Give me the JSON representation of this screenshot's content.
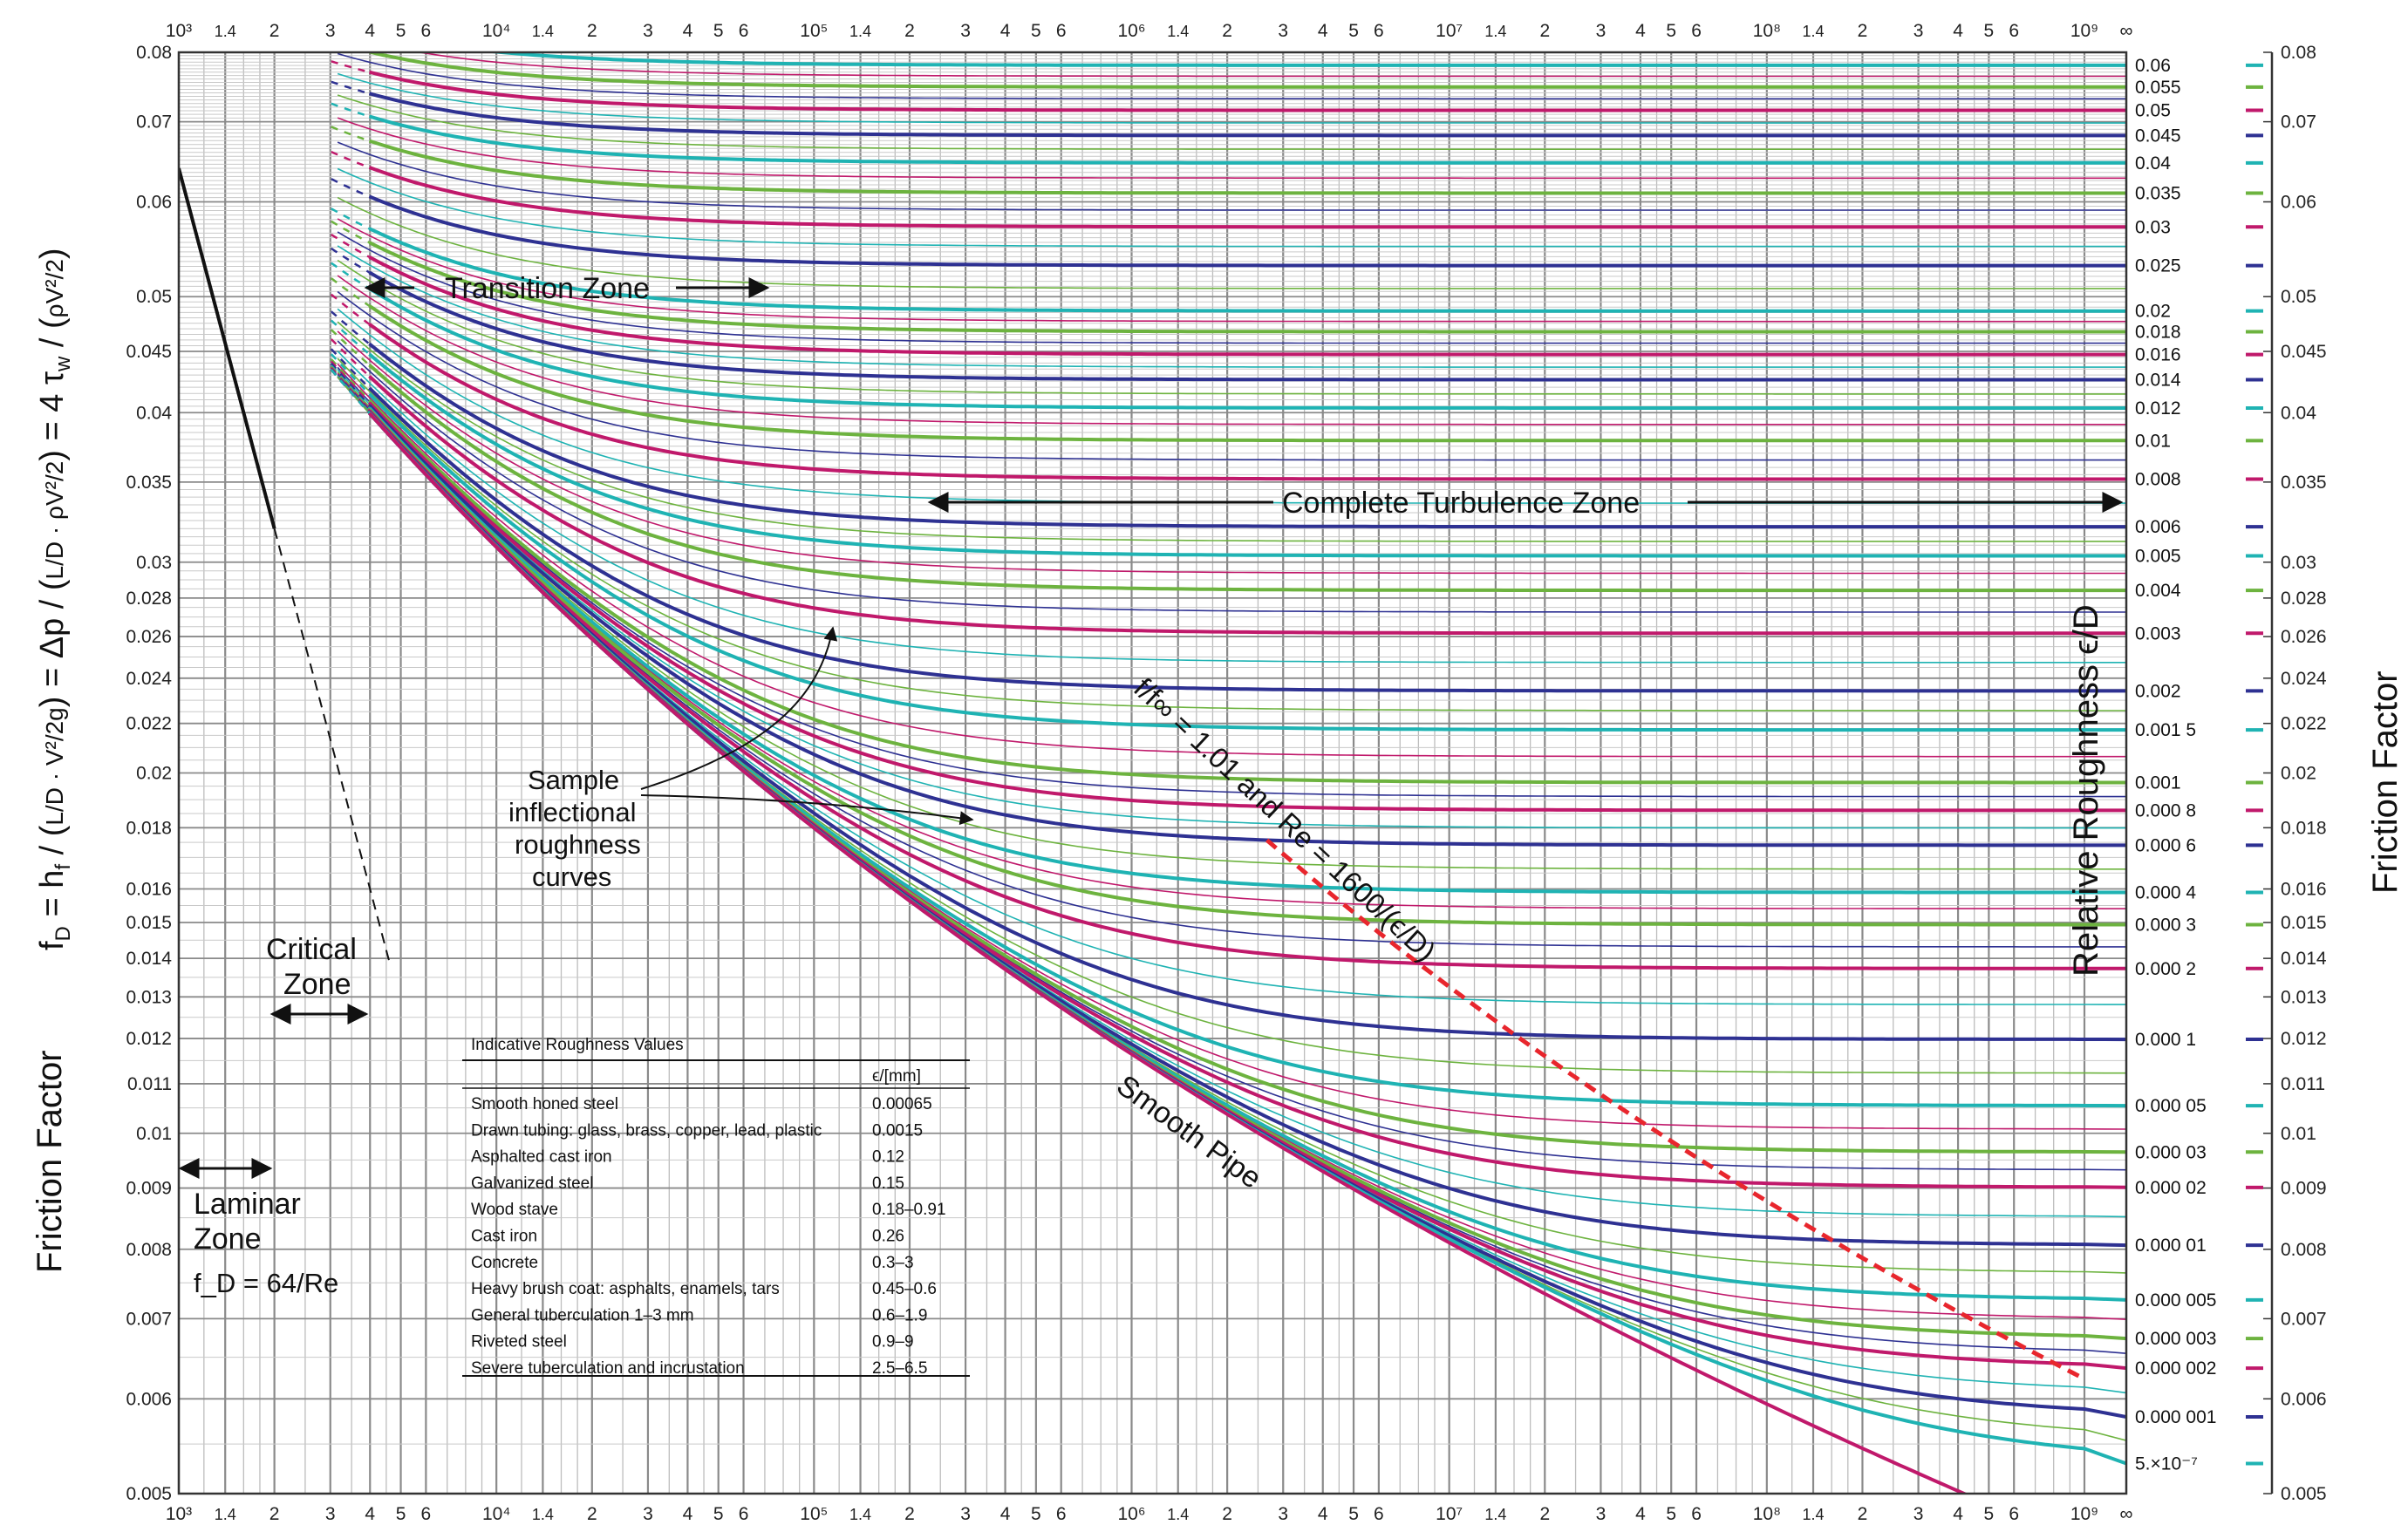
{
  "chart_data": {
    "type": "line",
    "x_scale": "log",
    "y_scale": "log",
    "xlim": [
      1000,
      1000000000
    ],
    "ylim": [
      0.005,
      0.08
    ],
    "x_tick_labels": [
      "10³",
      "1.4",
      "2",
      "3",
      "4",
      "5",
      "6",
      "10⁴",
      "1.4",
      "2",
      "3",
      "4",
      "5",
      "6",
      "10⁵",
      "1.4",
      "2",
      "3",
      "4",
      "5",
      "6",
      "10⁶",
      "1.4",
      "2",
      "3",
      "4",
      "5",
      "6",
      "10⁷",
      "1.4",
      "2",
      "3",
      "4",
      "5",
      "6",
      "10⁸",
      "1.4",
      "2",
      "3",
      "4",
      "5",
      "6",
      "10⁹",
      "∞"
    ],
    "y_ticks": [
      "0.005",
      "0.006",
      "0.007",
      "0.008",
      "0.009",
      "0.01",
      "0.011",
      "0.012",
      "0.013",
      "0.014",
      "0.015",
      "0.016",
      "0.018",
      "0.02",
      "0.022",
      "0.024",
      "0.026",
      "0.028",
      "0.03",
      "0.035",
      "0.04",
      "0.045",
      "0.05",
      "0.06",
      "0.07",
      "0.08"
    ],
    "roughness_labels": [
      "0.06",
      "0.055",
      "0.05",
      "0.045",
      "0.04",
      "0.035",
      "0.03",
      "0.025",
      "0.02",
      "0.018",
      "0.016",
      "0.014",
      "0.012",
      "0.01",
      "0.008",
      "0.006",
      "0.005",
      "0.004",
      "0.003",
      "0.002",
      "0.001 5",
      "0.001",
      "0.000 8",
      "0.000 6",
      "0.000 4",
      "0.000 3",
      "0.000 2",
      "0.000 1",
      "0.000 05",
      "0.000 03",
      "0.000 02",
      "0.000 01",
      "0.000 005",
      "0.000 003",
      "0.000 002",
      "0.000 001",
      "5.×10⁻⁷"
    ],
    "roughness_values": [
      0.06,
      0.055,
      0.05,
      0.045,
      0.04,
      0.035,
      0.03,
      0.025,
      0.02,
      0.018,
      0.016,
      0.014,
      0.012,
      0.01,
      0.008,
      0.006,
      0.005,
      0.004,
      0.003,
      0.002,
      0.0015,
      0.001,
      0.0008,
      0.0006,
      0.0004,
      0.0003,
      0.0002,
      0.0001,
      5e-05,
      3e-05,
      2e-05,
      1e-05,
      5e-06,
      3e-06,
      2e-06,
      1e-06,
      5e-07
    ],
    "series_palette": [
      "#1fb3b3",
      "#6db33f",
      "#c0196b",
      "#2e3192"
    ],
    "laminar": {
      "formula": "fD = 64/Re",
      "re_range": [
        1000,
        5000
      ]
    },
    "boundary_line": {
      "color": "#e8262d",
      "style": "dashed"
    },
    "y_label_left": "Friction Factor",
    "y_label_right": "Friction Factor",
    "secondary_label": "Relative Roughness  ϵ/D",
    "annotations": {
      "transition_zone": "Transition Zone",
      "complete_turbulence": "Complete Turbulence Zone",
      "laminar_1": "Laminar",
      "laminar_2": "Zone",
      "laminar_formula": "f_D = 64/Re",
      "critical_1": "Critical",
      "critical_2": "Zone",
      "sample_1": "Sample",
      "sample_2": "inflectional",
      "sample_3": "roughness",
      "sample_4": "curves",
      "smooth_pipe": "Smooth Pipe",
      "red_line": "f/f∞ = 1.01  and  Re = 1600/(ϵ/D)"
    }
  },
  "roughness_table": {
    "title": "Indicative Roughness Values",
    "col_header": "ϵ/[mm]",
    "rows": [
      [
        "Smooth honed steel",
        "0.00065"
      ],
      [
        "Drawn tubing: glass, brass, copper, lead, plastic",
        "0.0015"
      ],
      [
        "Asphalted cast iron",
        "0.12"
      ],
      [
        "Galvanized steel",
        "0.15"
      ],
      [
        "Wood stave",
        "0.18–0.91"
      ],
      [
        "Cast iron",
        "0.26"
      ],
      [
        "Concrete",
        "0.3–3"
      ],
      [
        "Heavy brush coat: asphalts, enamels, tars",
        "0.45–0.6"
      ],
      [
        "General tuberculation 1–3 mm",
        "0.6–1.9"
      ],
      [
        "Riveted steel",
        "0.9–9"
      ],
      [
        "Severe tuberculation and incrustation",
        "2.5–6.5"
      ]
    ]
  }
}
